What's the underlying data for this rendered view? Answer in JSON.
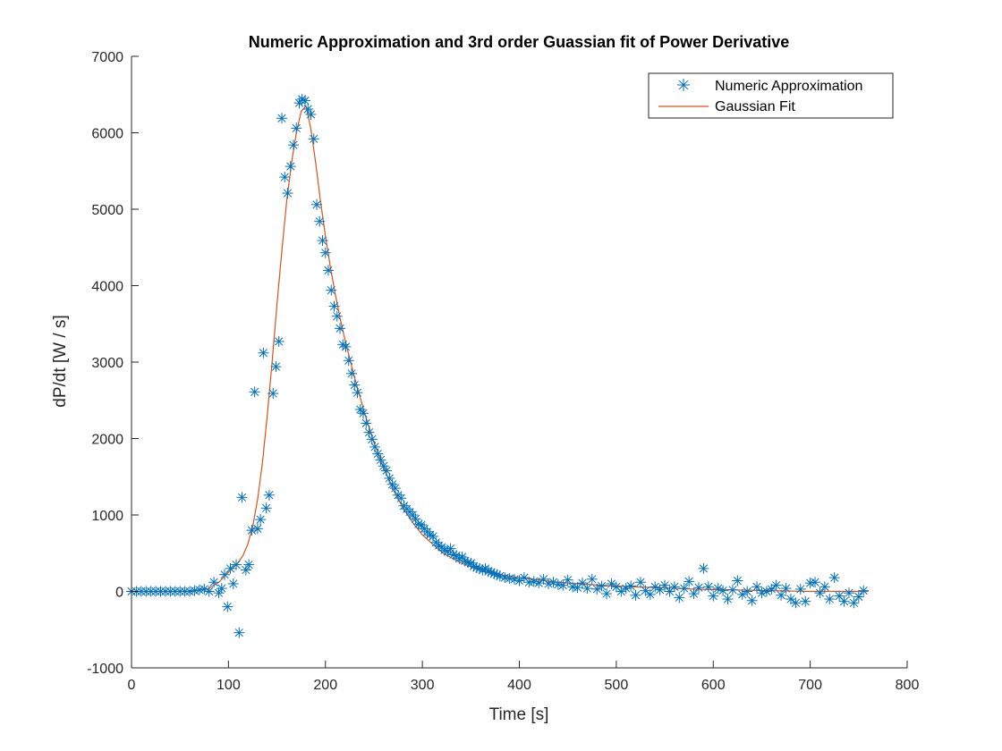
{
  "chart_data": {
    "type": "scatter",
    "title": "Numeric Approximation and 3rd order Guassian fit of Power Derivative",
    "xlabel": "Time [s]",
    "ylabel": "dP/dt [W / s]",
    "xlim": [
      0,
      800
    ],
    "ylim": [
      -1000,
      7000
    ],
    "xticks": [
      0,
      100,
      200,
      300,
      400,
      500,
      600,
      700,
      800
    ],
    "yticks": [
      -1000,
      0,
      1000,
      2000,
      3000,
      4000,
      5000,
      6000,
      7000
    ],
    "grid": false,
    "legend_position": "top-right",
    "colors": {
      "scatter": "#0072BD",
      "fit": "#D95319",
      "axis": "#262626"
    },
    "series": [
      {
        "name": "Numeric Approximation",
        "kind": "scatter",
        "marker": "asterisk",
        "x": [
          0,
          5,
          10,
          15,
          20,
          25,
          30,
          35,
          40,
          45,
          50,
          55,
          60,
          65,
          70,
          75,
          80,
          85,
          90,
          93,
          96,
          99,
          102,
          105,
          108,
          111,
          114,
          118,
          121,
          124,
          127,
          130,
          133,
          136,
          139,
          142,
          146,
          149,
          152,
          155,
          158,
          161,
          164,
          167,
          170,
          173,
          176,
          179,
          182,
          185,
          188,
          191,
          194,
          197,
          200,
          203,
          206,
          209,
          212,
          215,
          218,
          221,
          224,
          227,
          230,
          233,
          236,
          239,
          242,
          245,
          248,
          251,
          254,
          257,
          260,
          263,
          266,
          269,
          272,
          275,
          278,
          281,
          284,
          287,
          290,
          293,
          296,
          299,
          302,
          305,
          308,
          311,
          314,
          317,
          320,
          323,
          326,
          329,
          332,
          335,
          338,
          341,
          344,
          347,
          350,
          353,
          356,
          359,
          362,
          365,
          368,
          371,
          374,
          377,
          380,
          385,
          390,
          395,
          400,
          405,
          410,
          415,
          420,
          425,
          430,
          435,
          440,
          445,
          450,
          455,
          460,
          465,
          470,
          475,
          480,
          485,
          490,
          495,
          500,
          505,
          510,
          515,
          520,
          525,
          530,
          535,
          540,
          545,
          550,
          555,
          560,
          565,
          570,
          575,
          580,
          585,
          590,
          595,
          600,
          605,
          610,
          615,
          620,
          625,
          630,
          635,
          640,
          645,
          650,
          655,
          660,
          665,
          670,
          675,
          680,
          685,
          690,
          695,
          700,
          705,
          710,
          715,
          720,
          725,
          730,
          735,
          740,
          745,
          750,
          755
        ],
        "y": [
          0,
          0,
          0,
          0,
          0,
          0,
          0,
          0,
          0,
          0,
          0,
          0,
          0,
          10,
          20,
          30,
          0,
          120,
          -20,
          40,
          220,
          -200,
          300,
          100,
          350,
          -540,
          1230,
          280,
          350,
          800,
          2610,
          820,
          940,
          3120,
          1090,
          1260,
          2590,
          2940,
          3270,
          6190,
          5420,
          5210,
          5560,
          5840,
          6060,
          6390,
          6440,
          6420,
          6310,
          6240,
          5920,
          5060,
          4840,
          4590,
          4430,
          4200,
          3940,
          3730,
          3600,
          3440,
          3230,
          3200,
          3020,
          2850,
          2700,
          2600,
          2380,
          2330,
          2200,
          2080,
          1990,
          1890,
          1800,
          1720,
          1640,
          1580,
          1480,
          1400,
          1350,
          1260,
          1220,
          1120,
          1080,
          1040,
          1000,
          950,
          880,
          870,
          820,
          780,
          740,
          720,
          640,
          600,
          580,
          540,
          520,
          560,
          480,
          470,
          430,
          450,
          400,
          380,
          370,
          330,
          310,
          300,
          280,
          300,
          260,
          250,
          230,
          220,
          200,
          180,
          170,
          160,
          140,
          180,
          120,
          130,
          110,
          160,
          100,
          120,
          90,
          80,
          150,
          60,
          50,
          110,
          40,
          160,
          30,
          70,
          -30,
          100,
          60,
          0,
          40,
          70,
          -50,
          120,
          10,
          -40,
          60,
          20,
          80,
          0,
          60,
          -80,
          40,
          130,
          -30,
          50,
          300,
          60,
          -60,
          40,
          10,
          -100,
          20,
          140,
          -40,
          0,
          -120,
          60,
          -20,
          0,
          30,
          80,
          -50,
          40,
          -100,
          -150,
          30,
          -130,
          110,
          120,
          -20,
          60,
          -100,
          180,
          -60,
          -130,
          -20,
          -150,
          -70,
          10
        ]
      },
      {
        "name": "Gaussian Fit",
        "kind": "line",
        "x": [
          0,
          20,
          40,
          60,
          70,
          80,
          90,
          100,
          110,
          115,
          120,
          125,
          130,
          135,
          140,
          145,
          150,
          155,
          160,
          165,
          170,
          175,
          180,
          185,
          190,
          195,
          200,
          205,
          210,
          215,
          220,
          230,
          240,
          250,
          260,
          270,
          280,
          290,
          300,
          320,
          340,
          360,
          380,
          400,
          420,
          440,
          460,
          480,
          500,
          520,
          540,
          560,
          580,
          600,
          620,
          640,
          660,
          680,
          700,
          720,
          740,
          760
        ],
        "y": [
          0,
          0,
          0,
          5,
          15,
          40,
          120,
          250,
          380,
          470,
          620,
          850,
          1200,
          1680,
          2300,
          3000,
          3750,
          4450,
          5100,
          5600,
          6000,
          6280,
          6350,
          6050,
          5600,
          5100,
          4650,
          4250,
          3900,
          3580,
          3300,
          2800,
          2350,
          1950,
          1620,
          1330,
          1090,
          900,
          740,
          510,
          370,
          280,
          220,
          180,
          150,
          120,
          100,
          85,
          70,
          60,
          50,
          40,
          30,
          25,
          20,
          15,
          10,
          5,
          0,
          0,
          0,
          0
        ]
      }
    ]
  }
}
